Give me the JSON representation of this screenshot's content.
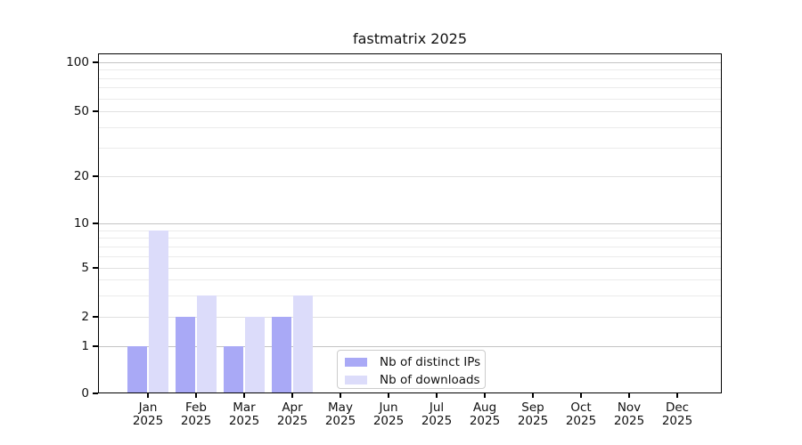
{
  "title": "fastmatrix 2025",
  "colors": {
    "distinct_ips_bar": "#a9a9f6",
    "downloads_bar": "#dcdcfa",
    "grid_major": "#c4c4c4",
    "grid_mid": "#e0e0e0",
    "grid_minor": "#ebebeb",
    "axis": "#000000"
  },
  "chart_data": {
    "type": "bar",
    "title": "fastmatrix 2025",
    "categories": [
      "Jan",
      "Feb",
      "Mar",
      "Apr",
      "May",
      "Jun",
      "Jul",
      "Aug",
      "Sep",
      "Oct",
      "Nov",
      "Dec"
    ],
    "year": "2025",
    "series": [
      {
        "name": "Nb of distinct IPs",
        "values": [
          1,
          2,
          1,
          2,
          0,
          0,
          0,
          0,
          0,
          0,
          0,
          0
        ]
      },
      {
        "name": "Nb of downloads",
        "values": [
          9,
          3,
          2,
          3,
          0,
          0,
          0,
          0,
          0,
          0,
          0,
          0
        ]
      }
    ],
    "xlabel": "",
    "ylabel": "",
    "yticks": [
      0,
      1,
      2,
      5,
      10,
      20,
      50,
      100
    ],
    "ylim": [
      0,
      110
    ],
    "yscale": "symlog",
    "grid": true,
    "legend_position": "lower center"
  }
}
